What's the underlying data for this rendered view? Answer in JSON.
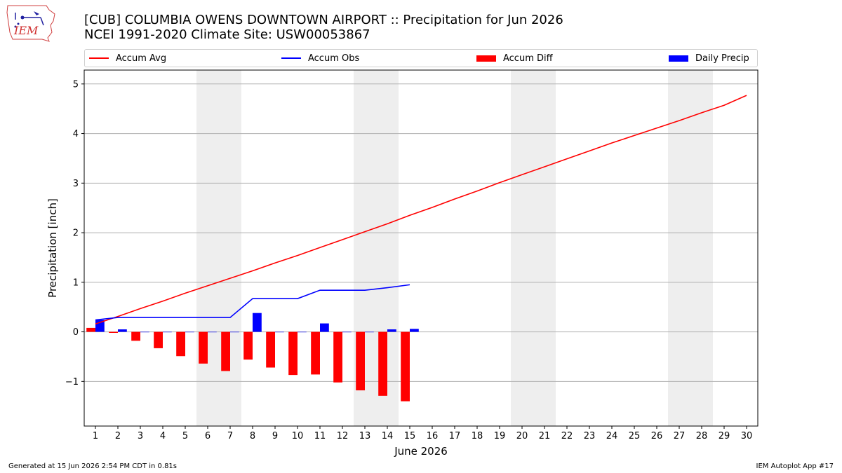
{
  "header": {
    "title_line1": "[CUB] COLUMBIA OWENS DOWNTOWN AIRPORT :: Precipitation for Jun 2026",
    "title_line2": "NCEI 1991-2020 Climate Site: USW00053867",
    "logo_text": "IEM"
  },
  "footer": {
    "generated": "Generated at 15 Jun 2026 2:54 PM CDT in 0.81s",
    "app": "IEM Autoplot App #17"
  },
  "colors": {
    "accum_avg": "#ff0000",
    "accum_obs": "#0000ff",
    "accum_diff": "#ff0000",
    "daily_precip": "#0000ff",
    "weekend_shade": "#eeeeee",
    "grid": "#b0b0b0"
  },
  "chart_data": {
    "type": "bar",
    "xlabel": "June 2026",
    "ylabel": "Precipitation [inch]",
    "ylim": [
      -1.9,
      5.28
    ],
    "yticks": [
      -1,
      0,
      1,
      2,
      3,
      4,
      5
    ],
    "ytick_labels": [
      "−1",
      "0",
      "1",
      "2",
      "3",
      "4",
      "5"
    ],
    "xlim": [
      0.5,
      30.5
    ],
    "days": [
      1,
      2,
      3,
      4,
      5,
      6,
      7,
      8,
      9,
      10,
      11,
      12,
      13,
      14,
      15,
      16,
      17,
      18,
      19,
      20,
      21,
      22,
      23,
      24,
      25,
      26,
      27,
      28,
      29,
      30
    ],
    "grid": "horizontal",
    "legend_placement": "top",
    "weekend_spans": [
      [
        5.5,
        7.5
      ],
      [
        12.5,
        14.5
      ],
      [
        19.5,
        21.5
      ],
      [
        26.5,
        28.5
      ]
    ],
    "series": [
      {
        "name": "Accum Avg",
        "kind": "line",
        "color": "#ff0000",
        "x": [
          1,
          2,
          3,
          4,
          5,
          6,
          7,
          8,
          9,
          10,
          11,
          12,
          13,
          14,
          15,
          16,
          17,
          18,
          19,
          20,
          21,
          22,
          23,
          24,
          25,
          26,
          27,
          28,
          29,
          30
        ],
        "values": [
          0.16,
          0.31,
          0.47,
          0.62,
          0.78,
          0.93,
          1.08,
          1.23,
          1.39,
          1.54,
          1.7,
          1.86,
          2.02,
          2.18,
          2.35,
          2.51,
          2.68,
          2.84,
          3.01,
          3.17,
          3.33,
          3.49,
          3.65,
          3.81,
          3.96,
          4.11,
          4.26,
          4.42,
          4.57,
          4.77
        ]
      },
      {
        "name": "Accum Obs",
        "kind": "line",
        "color": "#0000ff",
        "x": [
          1,
          2,
          3,
          4,
          5,
          6,
          7,
          8,
          9,
          10,
          11,
          12,
          13,
          14,
          15
        ],
        "values": [
          0.24,
          0.29,
          0.29,
          0.29,
          0.29,
          0.29,
          0.29,
          0.67,
          0.67,
          0.67,
          0.84,
          0.84,
          0.84,
          0.89,
          0.95
        ]
      },
      {
        "name": "Accum Diff",
        "kind": "bar",
        "color": "#ff0000",
        "x": [
          1,
          2,
          3,
          4,
          5,
          6,
          7,
          8,
          9,
          10,
          11,
          12,
          13,
          14,
          15
        ],
        "values": [
          0.08,
          -0.02,
          -0.18,
          -0.33,
          -0.49,
          -0.64,
          -0.79,
          -0.56,
          -0.72,
          -0.87,
          -0.86,
          -1.02,
          -1.18,
          -1.29,
          -1.4
        ]
      },
      {
        "name": "Daily Precip",
        "kind": "bar",
        "color": "#0000ff",
        "x": [
          1,
          2,
          3,
          4,
          5,
          6,
          7,
          8,
          9,
          10,
          11,
          12,
          13,
          14,
          15
        ],
        "values": [
          0.24,
          0.05,
          0,
          0,
          0,
          0,
          0,
          0.38,
          0,
          0,
          0.17,
          0,
          0,
          0.05,
          0.06
        ]
      }
    ]
  }
}
